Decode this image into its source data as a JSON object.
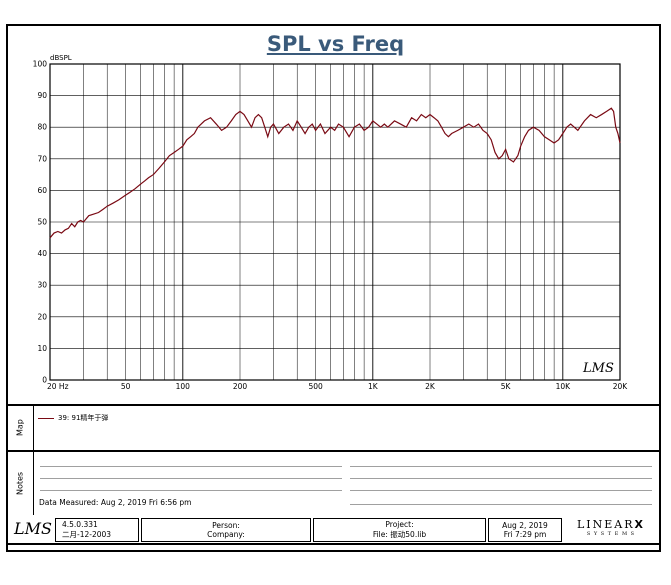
{
  "chart_data": {
    "type": "line",
    "title": "SPL vs Freq",
    "ylabel": "dBSPL",
    "xscale": "log",
    "xlim": [
      20,
      20000
    ],
    "ylim": [
      0,
      100
    ],
    "grid": true,
    "yticks": [
      0,
      10,
      20,
      30,
      40,
      50,
      60,
      70,
      80,
      90,
      100
    ],
    "xticks": [
      {
        "value": 20,
        "label": "20  Hz"
      },
      {
        "value": 50,
        "label": "50"
      },
      {
        "value": 100,
        "label": "100"
      },
      {
        "value": 200,
        "label": "200"
      },
      {
        "value": 500,
        "label": "500"
      },
      {
        "value": 1000,
        "label": "1K"
      },
      {
        "value": 2000,
        "label": "2K"
      },
      {
        "value": 5000,
        "label": "5K"
      },
      {
        "value": 10000,
        "label": "10K"
      },
      {
        "value": 20000,
        "label": "20K"
      }
    ],
    "series": [
      {
        "name": "39: 91精年于弹",
        "color": "#7a0a14",
        "x": [
          20,
          21,
          22,
          23,
          24,
          25,
          26,
          27,
          28,
          29,
          30,
          32,
          34,
          36,
          38,
          40,
          43,
          46,
          50,
          53,
          56,
          60,
          63,
          66,
          70,
          75,
          80,
          85,
          90,
          95,
          100,
          105,
          110,
          115,
          120,
          130,
          140,
          150,
          160,
          170,
          180,
          190,
          200,
          210,
          220,
          230,
          240,
          250,
          260,
          270,
          280,
          290,
          300,
          320,
          340,
          360,
          380,
          400,
          420,
          440,
          460,
          480,
          500,
          530,
          560,
          600,
          630,
          660,
          700,
          750,
          800,
          850,
          900,
          950,
          1000,
          1050,
          1100,
          1150,
          1200,
          1300,
          1400,
          1500,
          1600,
          1700,
          1800,
          1900,
          2000,
          2100,
          2200,
          2300,
          2400,
          2500,
          2600,
          2800,
          3000,
          3200,
          3400,
          3600,
          3800,
          4000,
          4200,
          4400,
          4600,
          4800,
          5000,
          5200,
          5500,
          5800,
          6000,
          6300,
          6600,
          7000,
          7500,
          8000,
          8500,
          9000,
          9500,
          10000,
          10500,
          11000,
          12000,
          13000,
          14000,
          15000,
          16000,
          17000,
          18000,
          18500,
          19000,
          19500,
          20000
        ],
        "y": [
          45,
          46.5,
          47,
          46.5,
          47.5,
          48,
          49.5,
          48.5,
          50,
          50.5,
          50,
          52,
          52.5,
          53,
          54,
          55,
          56,
          57,
          58.5,
          59.5,
          60.5,
          62,
          63,
          64,
          65,
          67,
          69,
          71,
          72,
          73,
          74,
          76,
          77,
          78,
          80,
          82,
          83,
          81,
          79,
          80,
          82,
          84,
          85,
          84,
          82,
          80,
          83,
          84,
          83,
          80,
          77,
          80,
          81,
          78,
          80,
          81,
          79,
          82,
          80,
          78,
          80,
          81,
          79,
          81,
          78,
          80,
          79,
          81,
          80,
          77,
          80,
          81,
          79,
          80,
          82,
          81,
          80,
          81,
          80,
          82,
          81,
          80,
          83,
          82,
          84,
          83,
          84,
          83,
          82,
          80,
          78,
          77,
          78,
          79,
          80,
          81,
          80,
          81,
          79,
          78,
          76,
          72,
          70,
          71,
          73,
          70,
          69,
          71,
          74,
          77,
          79,
          80,
          79,
          77,
          76,
          75,
          76,
          78,
          80,
          81,
          79,
          82,
          84,
          83,
          84,
          85,
          86,
          85,
          80,
          78,
          75
        ]
      }
    ]
  },
  "map": {
    "label": "Map"
  },
  "notes": {
    "label": "Notes",
    "data_measured": "Data Measured: Aug  2, 2019  Fri  6:56 pm"
  },
  "footer": {
    "version": "4.5.0.331",
    "version_date": "二月-12-2003",
    "person": "Person:",
    "company": "Company:",
    "project": "Project:",
    "file": "File: 振动50.lib",
    "date": "Aug  2, 2019",
    "time": "Fri  7:29 pm",
    "logo_lms": "LMS",
    "logo_linearx_main": "LINEAR",
    "logo_linearx_x": "X",
    "logo_linearx_sub": "S Y S T E M S"
  },
  "watermark": "LMS",
  "colors": {
    "curve": "#7a0a14",
    "grid": "#000000",
    "title": "#3a5a7a"
  }
}
